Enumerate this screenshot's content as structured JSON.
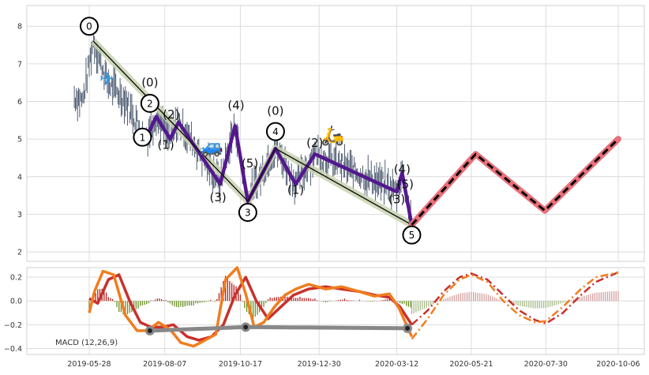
{
  "chart_data": [
    {
      "type": "line",
      "panel": "price",
      "title": "",
      "xlabel": "",
      "ylabel": "",
      "ylim": [
        1.75,
        8.55
      ],
      "yticks": [
        2,
        3,
        4,
        5,
        6,
        7,
        8
      ],
      "grid": true,
      "x_ticks": [
        "2019-05-28",
        "2019-08-07",
        "2019-10-17",
        "2019-12-30",
        "2020-03-12",
        "2020-05-21",
        "2020-07-30",
        "2020-10-06"
      ],
      "series": [
        {
          "role": "primary-wave",
          "color": "#000000",
          "points": [
            {
              "x": "2019-06-01",
              "y": 7.6
            },
            {
              "x": "2019-10-24",
              "y": 3.35
            },
            {
              "x": "2019-11-19",
              "y": 4.75
            },
            {
              "x": "2020-03-26",
              "y": 2.72
            }
          ]
        },
        {
          "role": "intermediate-wave",
          "color": "#54188e",
          "points": [
            {
              "x": "2019-07-20",
              "y": 5.0
            },
            {
              "x": "2019-07-30",
              "y": 5.6
            },
            {
              "x": "2019-08-12",
              "y": 5.0
            },
            {
              "x": "2019-08-20",
              "y": 5.45
            },
            {
              "x": "2019-09-28",
              "y": 3.8
            },
            {
              "x": "2019-10-12",
              "y": 5.35
            },
            {
              "x": "2019-10-24",
              "y": 3.35
            },
            {
              "x": "2019-11-19",
              "y": 4.75
            },
            {
              "x": "2019-12-08",
              "y": 3.8
            },
            {
              "x": "2019-12-26",
              "y": 4.6
            },
            {
              "x": "2020-03-12",
              "y": 3.6
            },
            {
              "x": "2020-03-17",
              "y": 4.1
            },
            {
              "x": "2020-03-26",
              "y": 2.72
            }
          ]
        },
        {
          "role": "projection",
          "color": "#000000",
          "outline": "#e8707a",
          "points": [
            {
              "x": "2020-03-26",
              "y": 2.72
            },
            {
              "x": "2020-05-25",
              "y": 4.6
            },
            {
              "x": "2020-07-29",
              "y": 3.1
            },
            {
              "x": "2020-10-06",
              "y": 5.0
            }
          ]
        }
      ],
      "wave_labels": [
        {
          "text": "0",
          "circled": true,
          "x": "2019-05-28",
          "y": 8.0
        },
        {
          "text": "(0)",
          "circled": false,
          "x": "2019-07-24",
          "y": 6.5
        },
        {
          "text": "2",
          "circled": true,
          "x": "2019-07-24",
          "y": 5.95
        },
        {
          "text": "1",
          "circled": true,
          "x": "2019-07-17",
          "y": 5.05
        },
        {
          "text": "(2)",
          "circled": false,
          "x": "2019-08-13",
          "y": 5.65
        },
        {
          "text": "(1)",
          "circled": false,
          "x": "2019-08-08",
          "y": 4.85
        },
        {
          "text": "(4)",
          "circled": false,
          "x": "2019-10-13",
          "y": 5.9
        },
        {
          "text": "(5)",
          "circled": false,
          "x": "2019-10-26",
          "y": 4.35
        },
        {
          "text": "(3)",
          "circled": false,
          "x": "2019-09-26",
          "y": 3.45
        },
        {
          "text": "3",
          "circled": true,
          "x": "2019-10-24",
          "y": 3.05
        },
        {
          "text": "(0)",
          "circled": false,
          "x": "2019-11-19",
          "y": 5.75
        },
        {
          "text": "4",
          "circled": true,
          "x": "2019-11-19",
          "y": 5.2
        },
        {
          "text": "(1)",
          "circled": false,
          "x": "2019-12-08",
          "y": 3.65
        },
        {
          "text": "(2)",
          "circled": false,
          "x": "2019-12-26",
          "y": 4.9
        },
        {
          "text": "(4)",
          "circled": false,
          "x": "2020-03-17",
          "y": 4.2
        },
        {
          "text": "(5)",
          "circled": false,
          "x": "2020-03-20",
          "y": 3.8
        },
        {
          "text": "(3)",
          "circled": false,
          "x": "2020-03-12",
          "y": 3.4
        },
        {
          "text": "5",
          "circled": true,
          "x": "2020-03-26",
          "y": 2.45
        }
      ],
      "emoji_markers": [
        {
          "name": "airplane-icon",
          "glyph": "✈",
          "x": "2019-06-14",
          "y": 6.6
        },
        {
          "name": "car-icon",
          "glyph": "🚙",
          "x": "2019-09-20",
          "y": 4.8
        },
        {
          "name": "scooter-icon",
          "glyph": "🛵",
          "x": "2020-01-12",
          "y": 5.1
        }
      ]
    },
    {
      "type": "line",
      "panel": "macd",
      "title": "",
      "xlabel": "",
      "ylabel": "",
      "ylim": [
        -0.45,
        0.28
      ],
      "yticks": [
        -0.4,
        -0.2,
        0.0,
        0.2
      ],
      "ytick_labels": [
        "−0.4",
        "−0.2",
        "0.0",
        "0.2"
      ],
      "legend_text": "MACD (12,26,9)",
      "grid": true,
      "series": [
        {
          "role": "macd",
          "color": "#f07d1e",
          "x": [
            "2019-05-28",
            "2019-06-02",
            "2019-06-10",
            "2019-06-20",
            "2019-07-01",
            "2019-07-12",
            "2019-07-22",
            "2019-08-01",
            "2019-08-12",
            "2019-08-22",
            "2019-09-03",
            "2019-09-12",
            "2019-09-24",
            "2019-10-03",
            "2019-10-14",
            "2019-10-22",
            "2019-10-30",
            "2019-11-08",
            "2019-11-18",
            "2019-11-28",
            "2019-12-08",
            "2019-12-20",
            "2020-01-05",
            "2020-01-20",
            "2020-02-05",
            "2020-02-20",
            "2020-03-05",
            "2020-03-14",
            "2020-03-22",
            "2020-03-26"
          ],
          "values": [
            -0.1,
            0.08,
            0.25,
            0.22,
            -0.12,
            -0.25,
            -0.25,
            -0.18,
            -0.24,
            -0.35,
            -0.38,
            -0.34,
            -0.28,
            0.18,
            0.28,
            0.06,
            -0.22,
            -0.18,
            -0.05,
            0.05,
            0.1,
            0.14,
            0.1,
            0.12,
            0.08,
            0.04,
            0.06,
            -0.06,
            -0.22,
            -0.3
          ]
        },
        {
          "role": "signal",
          "color": "#c8312c",
          "x": [
            "2019-05-28",
            "2019-06-05",
            "2019-06-15",
            "2019-06-25",
            "2019-07-05",
            "2019-07-15",
            "2019-07-25",
            "2019-08-05",
            "2019-08-15",
            "2019-08-28",
            "2019-09-08",
            "2019-09-20",
            "2019-10-01",
            "2019-10-12",
            "2019-10-22",
            "2019-11-01",
            "2019-11-12",
            "2019-11-24",
            "2019-12-06",
            "2019-12-20",
            "2020-01-05",
            "2020-01-20",
            "2020-02-05",
            "2020-02-20",
            "2020-03-05",
            "2020-03-15",
            "2020-03-26"
          ],
          "values": [
            0.02,
            -0.02,
            0.18,
            0.22,
            0.0,
            -0.18,
            -0.22,
            -0.22,
            -0.2,
            -0.3,
            -0.33,
            -0.3,
            -0.2,
            0.05,
            0.2,
            0.0,
            -0.15,
            -0.05,
            0.05,
            0.1,
            0.12,
            0.1,
            0.08,
            0.05,
            0.03,
            -0.05,
            -0.2
          ]
        },
        {
          "role": "macd-projection",
          "color": "#f07d1e",
          "dash": "dashdot",
          "x": [
            "2020-03-26",
            "2020-04-10",
            "2020-04-25",
            "2020-05-10",
            "2020-05-21",
            "2020-06-05",
            "2020-06-20",
            "2020-07-05",
            "2020-07-20",
            "2020-07-30",
            "2020-08-15",
            "2020-09-01",
            "2020-09-15",
            "2020-10-06"
          ],
          "values": [
            -0.32,
            -0.15,
            0.05,
            0.18,
            0.22,
            0.16,
            0.0,
            -0.12,
            -0.18,
            -0.17,
            -0.05,
            0.1,
            0.2,
            0.24
          ]
        },
        {
          "role": "signal-projection",
          "color": "#c8312c",
          "dash": "dashdot",
          "x": [
            "2020-03-26",
            "2020-04-10",
            "2020-04-25",
            "2020-05-10",
            "2020-05-21",
            "2020-06-05",
            "2020-06-20",
            "2020-07-05",
            "2020-07-20",
            "2020-07-30",
            "2020-08-15",
            "2020-09-01",
            "2020-09-15",
            "2020-10-06"
          ],
          "values": [
            -0.2,
            -0.08,
            0.08,
            0.2,
            0.23,
            0.18,
            0.05,
            -0.08,
            -0.16,
            -0.19,
            -0.1,
            0.05,
            0.16,
            0.24
          ]
        },
        {
          "role": "divergence-line",
          "color": "#808080",
          "points": [
            {
              "x": "2019-07-24",
              "y": -0.25
            },
            {
              "x": "2019-10-22",
              "y": -0.22
            },
            {
              "x": "2020-03-22",
              "y": -0.23
            }
          ]
        }
      ]
    }
  ]
}
